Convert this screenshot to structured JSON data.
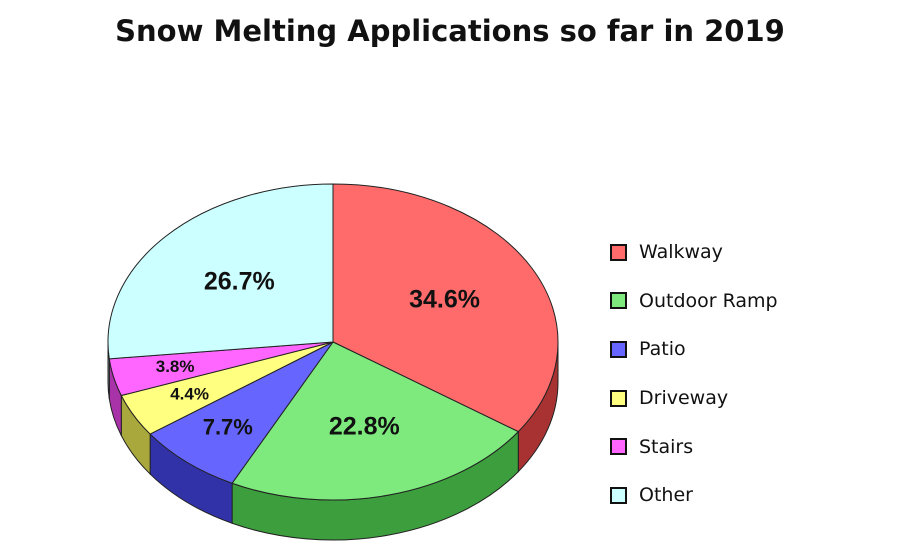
{
  "chart_data": {
    "type": "pie",
    "title": "Snow Melting Applications so far in 2019",
    "legend_position": "right",
    "slices": [
      {
        "label": "Walkway",
        "value": 34.6,
        "display": "34.6%",
        "color": "#ff6b6b",
        "side_color": "#a83232"
      },
      {
        "label": "Outdoor Ramp",
        "value": 22.8,
        "display": "22.8%",
        "color": "#7eea7e",
        "side_color": "#3c9e3c"
      },
      {
        "label": "Patio",
        "value": 7.7,
        "display": "7.7%",
        "color": "#6666ff",
        "side_color": "#3232a8"
      },
      {
        "label": "Driveway",
        "value": 4.4,
        "display": "4.4%",
        "color": "#ffff80",
        "side_color": "#a8a83c"
      },
      {
        "label": "Stairs",
        "value": 3.8,
        "display": "3.8%",
        "color": "#ff66ff",
        "side_color": "#a832a8"
      },
      {
        "label": "Other",
        "value": 26.7,
        "display": "26.7%",
        "color": "#ccffff",
        "side_color": "#8ab4b4"
      }
    ]
  }
}
